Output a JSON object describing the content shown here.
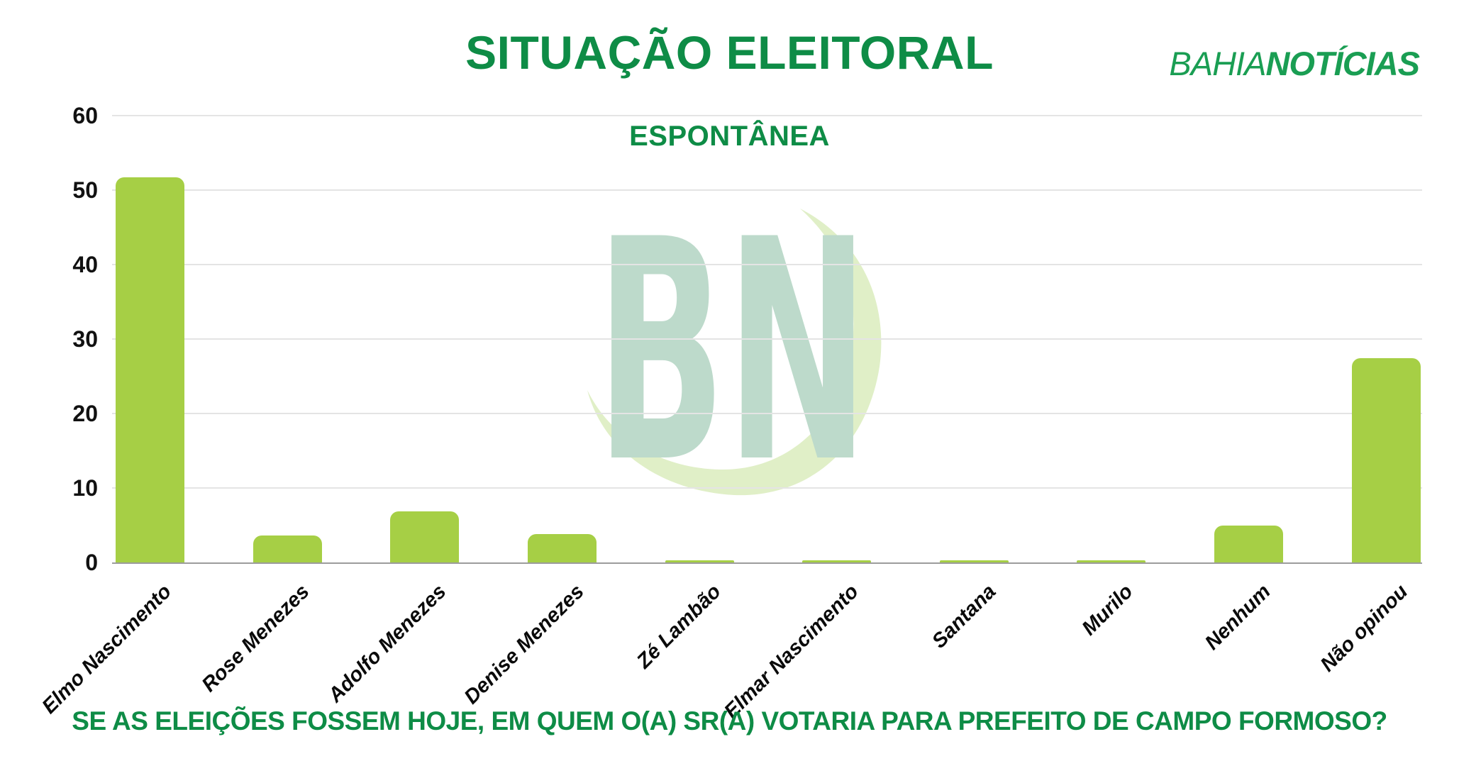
{
  "header": {
    "title": "SITUAÇÃO ELEITORAL",
    "subtitle": "ESPONTÂNEA",
    "brand": {
      "part1": "BAHIA",
      "part2": "NOTÍCIAS"
    }
  },
  "watermark": {
    "letters": "BN"
  },
  "footer": {
    "question": "SE AS ELEIÇÕES FOSSEM HOJE, EM QUEM O(A) SR(A) VOTARIA PARA PREFEITO DE CAMPO FORMOSO?"
  },
  "colors": {
    "text_green": "#0e8c46",
    "brand_green": "#1a9e53",
    "bar_green": "#a6cf45",
    "watermark_letters": "#bddacb",
    "watermark_swoosh": "#e0efc7",
    "gridline": "#e4e4e4",
    "axis_line": "#9c9c9c",
    "axis_text": "#111111"
  },
  "chart_data": {
    "type": "bar",
    "title": "SITUAÇÃO ELEITORAL",
    "subtitle": "ESPONTÂNEA",
    "categories": [
      "Elmo Nascimento",
      "Rose Menezes",
      "Adolfo Menezes",
      "Denise Menezes",
      "Zé Lambão",
      "Elmar Nascimento",
      "Santana",
      "Murilo",
      "Nenhum",
      "Não opinou"
    ],
    "values": [
      51.7,
      3.6,
      6.9,
      3.8,
      0.2,
      0.3,
      0.2,
      0.2,
      5.0,
      27.4
    ],
    "xlabel": "",
    "ylabel": "",
    "ylim": [
      0,
      60
    ],
    "yticks": [
      0,
      10,
      20,
      30,
      40,
      50,
      60
    ],
    "grid": true,
    "legend": false,
    "bar_color": "#a6cf45"
  }
}
